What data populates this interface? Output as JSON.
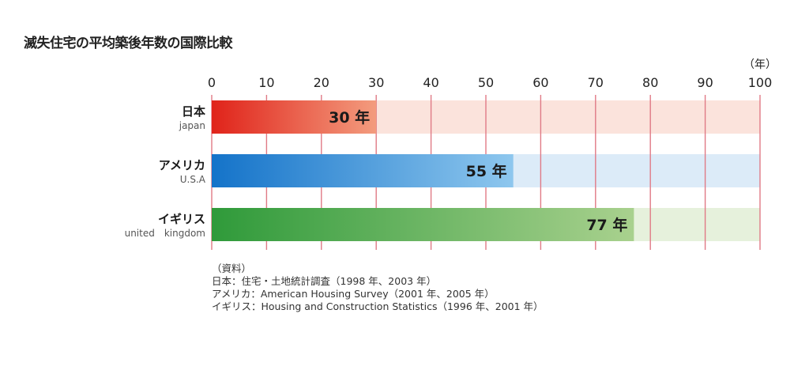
{
  "chart_data": {
    "type": "bar",
    "title": "滅失住宅の平均築後年数の国際比較",
    "unit_label": "（年）",
    "xlim": [
      0,
      100
    ],
    "ticks": [
      0,
      10,
      20,
      30,
      40,
      50,
      60,
      70,
      80,
      90,
      100
    ],
    "grid": true,
    "orientation": "horizontal",
    "categories": [
      {
        "name": "日本",
        "sub": "japan",
        "value": 30,
        "value_label": "30 年",
        "color_from": "#e0231a",
        "color_to": "#f39c7e",
        "track": "#fbe3dc"
      },
      {
        "name": "アメリカ",
        "sub": "U.S.A",
        "value": 55,
        "value_label": "55 年",
        "color_from": "#1473c9",
        "color_to": "#8ec7ee",
        "track": "#dcebf8"
      },
      {
        "name": "イギリス",
        "sub": "united　kingdom",
        "value": 77,
        "value_label": "77 年",
        "color_from": "#2f9a3a",
        "color_to": "#a9d18e",
        "track": "#e6f1dc"
      }
    ]
  },
  "source": {
    "heading": "（資料）",
    "lines": [
      "日本：住宅・土地統計調査（1998 年、2003 年）",
      "アメリカ：American Housing Survey（2001 年、2005 年）",
      "イギリス：Housing and Construction Statistics（1996 年、2001 年）"
    ]
  },
  "colors": {
    "grid": "#e07a86",
    "tick_text": "#222222"
  }
}
